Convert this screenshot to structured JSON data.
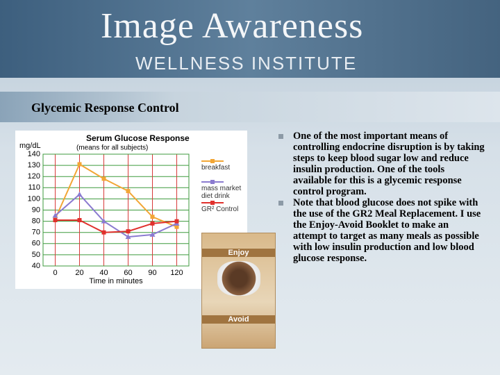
{
  "header": {
    "title": "Image Awareness",
    "subtitle": "WELLNESS INSTITUTE"
  },
  "section_title": "Glycemic Response Control",
  "chart": {
    "type": "line",
    "title": "Serum Glucose Response",
    "subtitle": "(means for all subjects)",
    "y_label": "mg/dL",
    "x_label": "Time in minutes",
    "categories": [
      "0",
      "20",
      "40",
      "60",
      "90",
      "120"
    ],
    "series": [
      {
        "name": "breakfast",
        "color": "#f2a635",
        "values": [
          82,
          131,
          118,
          107,
          84,
          75
        ]
      },
      {
        "name": "mass market diet drink",
        "color": "#8b7bd0",
        "values": [
          85,
          104,
          80,
          66,
          68,
          78
        ]
      },
      {
        "name": "GR² Control",
        "color": "#e0302c",
        "values": [
          81,
          81,
          70,
          71,
          78,
          80
        ]
      }
    ],
    "ylim": [
      40,
      140
    ],
    "yticks": [
      40,
      50,
      60,
      70,
      80,
      90,
      100,
      110,
      120,
      130,
      140
    ],
    "grid": true
  },
  "booklet": {
    "top_label": "Enjoy",
    "bottom_label": "Avoid"
  },
  "bullets": [
    "One of the most important means of controlling endocrine disruption is by taking steps to keep blood sugar low and reduce insulin production. One of the tools available for this is a glycemic response control program.",
    "Note that blood glucose does not spike with the use of the GR2 Meal Replacement. I use the Enjoy-Avoid Booklet to make an attempt to target as many meals as possible with low insulin production and low blood glucose response."
  ]
}
